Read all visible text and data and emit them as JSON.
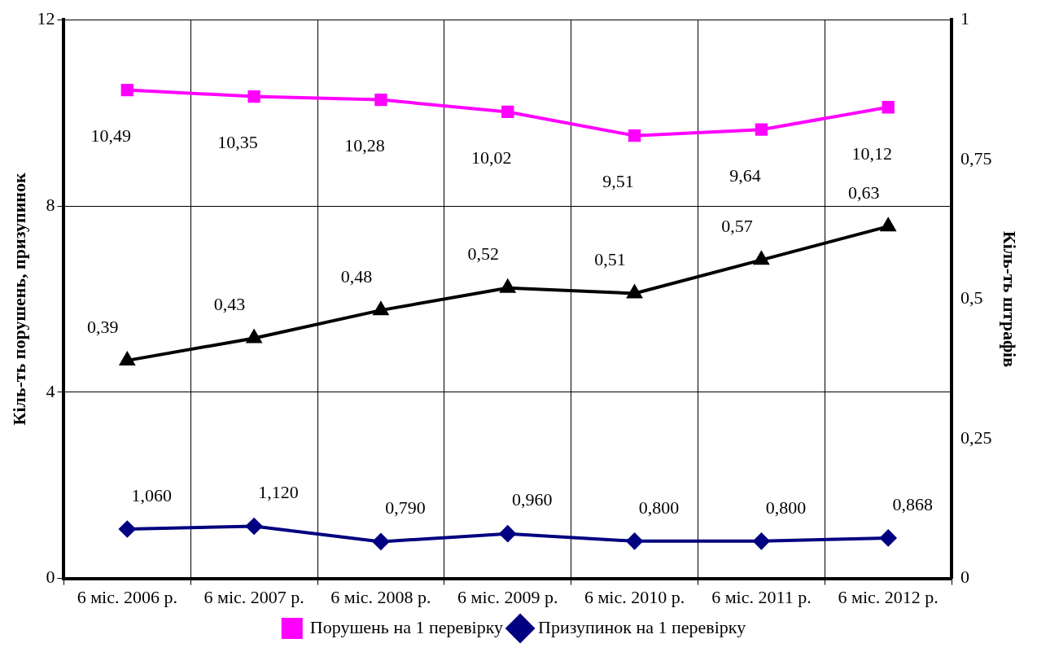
{
  "chart_data": {
    "type": "line",
    "categories": [
      "6 міс. 2006 р.",
      "6 міс. 2007 р.",
      "6 міс. 2008 р.",
      "6 міс. 2009 р.",
      "6 міс. 2010 р.",
      "6 міс. 2011 р.",
      "6 міс. 2012 р."
    ],
    "ylabel": "Кіль-ть порушень, призупинок",
    "y2label": "Кіль-ть штрафів",
    "ylim": [
      0,
      12
    ],
    "yticks": [
      0,
      4,
      8,
      12
    ],
    "y2lim": [
      0,
      1
    ],
    "y2ticks": [
      0,
      {
        "value": 0.25,
        "label": "0,25"
      },
      {
        "value": 0.5,
        "label": "0,5"
      },
      {
        "value": 0.75,
        "label": "0,75"
      },
      1
    ],
    "grid": true,
    "legend": "bottom",
    "series": [
      {
        "name": "Порушень на 1 перевірку",
        "color": "#ff00ff",
        "marker": "square",
        "values": [
          10.49,
          10.35,
          10.28,
          10.02,
          9.51,
          9.64,
          10.12
        ],
        "value_labels": [
          "10,49",
          "10,35",
          "10,28",
          "10,02",
          "9,51",
          "9,64",
          "10,12"
        ]
      },
      {
        "name": "Призупинок на 1 перевірку",
        "color": "#000080",
        "marker": "diamond",
        "values": [
          1.06,
          1.12,
          0.79,
          0.96,
          0.8,
          0.8,
          0.868
        ],
        "value_labels": [
          "1,060",
          "1,120",
          "0,790",
          "0,960",
          "0,800",
          "0,800",
          "0,868"
        ]
      },
      {
        "color": "#000000",
        "marker": "triangle",
        "axis": "y2",
        "values": [
          0.39,
          0.43,
          0.48,
          0.52,
          0.51,
          0.57,
          0.63
        ],
        "value_labels": [
          "0,39",
          "0,43",
          "0,48",
          "0,52",
          "0,51",
          "0,57",
          "0,63"
        ]
      }
    ]
  }
}
